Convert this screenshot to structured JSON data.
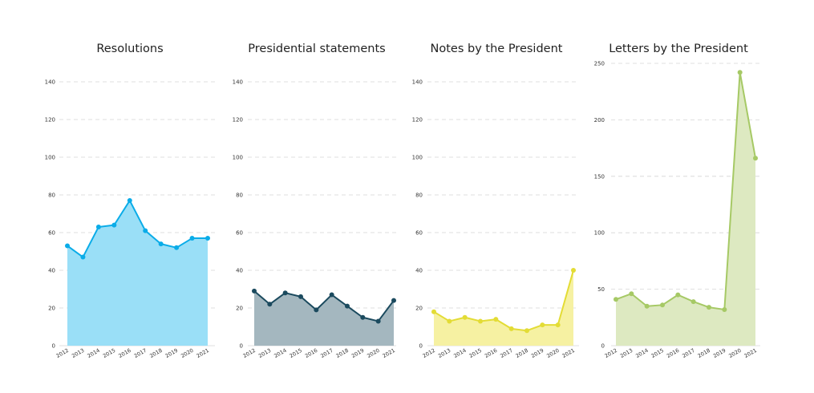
{
  "chart_data": [
    {
      "type": "area",
      "title": "Resolutions",
      "categories": [
        "2012",
        "2013",
        "2014",
        "2015",
        "2016",
        "2017",
        "2018",
        "2019",
        "2020",
        "2021"
      ],
      "values": [
        53,
        47,
        63,
        64,
        77,
        61,
        54,
        52,
        57,
        57
      ],
      "ylim": [
        0,
        140
      ],
      "yticks": [
        0,
        20,
        40,
        60,
        80,
        100,
        120,
        140
      ],
      "line_color": "#0aace8",
      "fill_color": "#9adff7",
      "grid": true
    },
    {
      "type": "area",
      "title": "Presidential statements",
      "categories": [
        "2012",
        "2013",
        "2014",
        "2015",
        "2016",
        "2017",
        "2018",
        "2019",
        "2020",
        "2021"
      ],
      "values": [
        29,
        22,
        28,
        26,
        19,
        27,
        21,
        15,
        13,
        24
      ],
      "ylim": [
        0,
        140
      ],
      "yticks": [
        0,
        20,
        40,
        60,
        80,
        100,
        120,
        140
      ],
      "line_color": "#1b4a5e",
      "fill_color": "#a4b7bf",
      "grid": true
    },
    {
      "type": "area",
      "title": "Notes by the President",
      "categories": [
        "2012",
        "2013",
        "2014",
        "2015",
        "2016",
        "2017",
        "2018",
        "2019",
        "2020",
        "2021"
      ],
      "values": [
        18,
        13,
        15,
        13,
        14,
        9,
        8,
        11,
        11,
        40
      ],
      "ylim": [
        0,
        140
      ],
      "yticks": [
        0,
        20,
        40,
        60,
        80,
        100,
        120,
        140
      ],
      "line_color": "#e3dc35",
      "fill_color": "#f6f1a2",
      "grid": true
    },
    {
      "type": "area",
      "title": "Letters by the President",
      "categories": [
        "2012",
        "2013",
        "2014",
        "2015",
        "2016",
        "2017",
        "2018",
        "2019",
        "2020",
        "2021"
      ],
      "values": [
        41,
        46,
        35,
        36,
        45,
        39,
        34,
        32,
        242,
        166
      ],
      "ylim": [
        0,
        250
      ],
      "yticks": [
        0,
        50,
        100,
        150,
        200,
        250
      ],
      "line_color": "#a6c965",
      "fill_color": "#dde9c1",
      "grid": true
    }
  ]
}
